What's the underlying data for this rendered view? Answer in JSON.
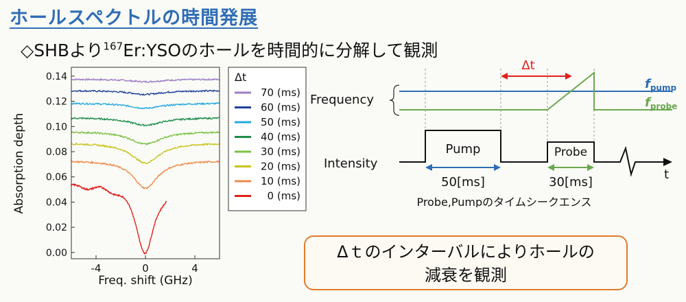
{
  "slide": {
    "title": "ホールスペクトルの時間発展",
    "subtitle_prefix": "◇SHBより",
    "subtitle_sup": "167",
    "subtitle_suffix": "Er:YSOのホールを時間的に分解して観測"
  },
  "chart_data": {
    "type": "line",
    "title": "",
    "xlabel": "Freq. shift (GHz)",
    "ylabel": "Absorption depth",
    "xlim": [
      -6,
      6
    ],
    "ylim": [
      -0.005,
      0.147
    ],
    "xticks": [
      "-4",
      "0",
      "4"
    ],
    "xtick_values": [
      -4,
      0,
      4
    ],
    "yticks": [
      "0.00",
      "0.02",
      "0.04",
      "0.06",
      "0.08",
      "0.10",
      "0.12",
      "0.14"
    ],
    "ytick_values": [
      0.0,
      0.02,
      0.04,
      0.06,
      0.08,
      0.1,
      0.12,
      0.14
    ],
    "legend_title": "Δt",
    "legend_position": "outside-right",
    "series": [
      {
        "name": "70 (ms)",
        "color": "#9c7cc8",
        "baseline": 0.1375,
        "depth": 0.002,
        "width": 1.6,
        "x_end": 6
      },
      {
        "name": "60 (ms)",
        "color": "#1f3f9a",
        "baseline": 0.1285,
        "depth": 0.003,
        "width": 1.6,
        "x_end": 6
      },
      {
        "name": "50 (ms)",
        "color": "#23a9df",
        "baseline": 0.1185,
        "depth": 0.004,
        "width": 1.6,
        "x_end": 6
      },
      {
        "name": "40 (ms)",
        "color": "#1e8c4a",
        "baseline": 0.107,
        "depth": 0.006,
        "width": 1.6,
        "x_end": 6
      },
      {
        "name": "30 (ms)",
        "color": "#7ac143",
        "baseline": 0.096,
        "depth": 0.01,
        "width": 1.5,
        "x_end": 6
      },
      {
        "name": "20 (ms)",
        "color": "#c9c21f",
        "baseline": 0.087,
        "depth": 0.016,
        "width": 1.4,
        "x_end": 6
      },
      {
        "name": "10 (ms)",
        "color": "#f08a4b",
        "baseline": 0.073,
        "depth": 0.022,
        "width": 1.2,
        "x_end": 6
      },
      {
        "name": "0 (ms)",
        "color": "#e0201e",
        "baseline": 0.0535,
        "depth": 0.054,
        "width": 0.9,
        "x_end": 1.7
      }
    ]
  },
  "timing": {
    "frequency_label": "Frequency",
    "intensity_label": "Intensity",
    "f_pump": "f",
    "f_pump_sub": "pump",
    "f_probe": "f",
    "f_probe_sub": "probe",
    "delta_t": "Δt",
    "pump_label": "Pump",
    "probe_label": "Probe",
    "pump_duration": "50[ms]",
    "probe_duration": "30[ms]",
    "time_label": "t",
    "caption": "Probe,Pumpのタイムシークエンス",
    "colors": {
      "pump": "#2f6db5",
      "probe": "#6aa84f",
      "delta": "#e0201e"
    }
  },
  "callout": {
    "line1": "Δｔのインターバルによりホールの",
    "line2": "減衰を観測"
  }
}
